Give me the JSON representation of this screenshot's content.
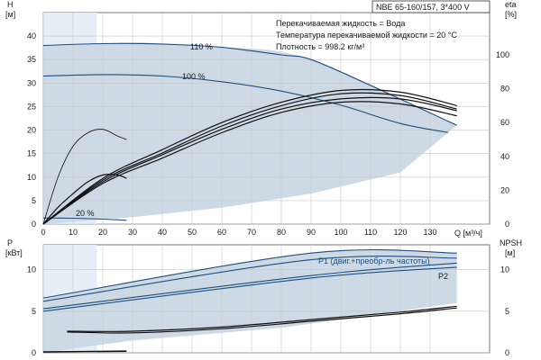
{
  "header_box": "NBE 65-160/157, 3*400 V",
  "info_lines": [
    "Перекачиваемая жидкость = Вода",
    "Температура перекачиваемой жидкости = 20 °C",
    "Плотность = 998.2 кг/м³"
  ],
  "colors": {
    "envelope_fill": "#cdd9e5",
    "light_fill": "#e6eef8",
    "blue_curve": "#1f4f82",
    "black_curve": "#111111",
    "grid": "#c8c8c8"
  },
  "chart_data": [
    {
      "type": "line",
      "title": "",
      "xlabel": "Q [м³/ч]",
      "ylabel_left": "H [м]",
      "ylabel_right": "eta [%]",
      "xlim": [
        0,
        150
      ],
      "ylim": [
        0,
        45
      ],
      "ylim_right": [
        0,
        125
      ],
      "x_ticks": [
        0,
        10,
        20,
        30,
        40,
        50,
        60,
        70,
        80,
        90,
        100,
        110,
        120,
        130
      ],
      "y_ticks": [
        0,
        5,
        10,
        15,
        20,
        25,
        30,
        35,
        40
      ],
      "y_ticks_right": [
        0,
        20,
        40,
        60,
        80,
        100
      ],
      "grid": true,
      "operating_envelope": {
        "upper": [
          [
            0,
            38
          ],
          [
            30,
            38.6
          ],
          [
            60,
            37.7
          ],
          [
            90,
            35
          ],
          [
            139,
            21
          ]
        ],
        "lower": [
          [
            0,
            0
          ],
          [
            30,
            1.5
          ],
          [
            60,
            3.5
          ],
          [
            90,
            6.5
          ],
          [
            120,
            11
          ],
          [
            139,
            21
          ]
        ]
      },
      "series": [
        {
          "name": "110 %",
          "axis": "left",
          "color": "blue",
          "x": [
            0,
            20,
            40,
            60,
            80,
            90,
            110,
            139
          ],
          "y": [
            38,
            38.4,
            38.3,
            37.6,
            36,
            35,
            29.5,
            21
          ]
        },
        {
          "name": "100 %",
          "axis": "left",
          "color": "blue",
          "x": [
            0,
            20,
            40,
            60,
            80,
            100,
            120,
            136
          ],
          "y": [
            31.5,
            31.8,
            31.5,
            30.3,
            28.3,
            25.3,
            21.4,
            19.5
          ]
        },
        {
          "name": "20 %",
          "axis": "left",
          "color": "blue",
          "x": [
            0,
            10,
            20,
            28
          ],
          "y": [
            1.3,
            1.25,
            1.05,
            0.8
          ]
        },
        {
          "name": "",
          "axis": "right",
          "x": [
            0,
            5,
            10,
            15,
            20,
            25,
            28
          ],
          "y": [
            0,
            28,
            46,
            54,
            56,
            52,
            50
          ]
        },
        {
          "name": "",
          "axis": "right",
          "x": [
            0,
            5,
            10,
            15,
            20,
            25,
            28
          ],
          "y": [
            0,
            10,
            18,
            25,
            29,
            29,
            27
          ]
        },
        {
          "name": "",
          "axis": "right",
          "x": [
            0,
            20,
            40,
            60,
            80,
            100,
            120,
            139
          ],
          "y": [
            0,
            27,
            44,
            60,
            72,
            79,
            78,
            70
          ]
        },
        {
          "name": "",
          "axis": "right",
          "x": [
            0,
            20,
            40,
            60,
            80,
            100,
            120,
            139
          ],
          "y": [
            0,
            26,
            42,
            58,
            70,
            77,
            76,
            68
          ]
        },
        {
          "name": "",
          "axis": "right",
          "x": [
            0,
            20,
            40,
            60,
            80,
            100,
            120,
            139
          ],
          "y": [
            0,
            25,
            41,
            56,
            68,
            74,
            74,
            67
          ]
        },
        {
          "name": "",
          "axis": "right",
          "x": [
            0,
            20,
            40,
            60,
            80,
            100,
            120,
            139
          ],
          "y": [
            0,
            24,
            39,
            54,
            66,
            72,
            71,
            64
          ]
        }
      ]
    },
    {
      "type": "line",
      "title": "",
      "xlabel": "",
      "ylabel_left": "P [кВт]",
      "ylabel_right": "NPSH [м]",
      "xlim": [
        0,
        150
      ],
      "ylim": [
        0,
        13
      ],
      "ylim_right": [
        0,
        13
      ],
      "y_ticks": [
        0,
        5,
        10
      ],
      "y_ticks_right": [
        0,
        5,
        10
      ],
      "grid": true,
      "operating_envelope": {
        "upper": [
          [
            0,
            6.6
          ],
          [
            90,
            12
          ],
          [
            139,
            12
          ]
        ],
        "lower": [
          [
            0,
            0
          ],
          [
            30,
            1.5
          ],
          [
            80,
            3
          ],
          [
            139,
            6
          ]
        ]
      },
      "series": [
        {
          "name": "P1 (двиг.+преобр-ль частоты)",
          "axis": "left",
          "color": "blue",
          "x": [
            0,
            90,
            139
          ],
          "y": [
            6.6,
            12.0,
            12.0
          ]
        },
        {
          "name": "",
          "axis": "left",
          "color": "blue",
          "x": [
            0,
            90,
            139
          ],
          "y": [
            6.2,
            11.2,
            11.4
          ]
        },
        {
          "name": "P2",
          "axis": "left",
          "color": "blue",
          "x": [
            0,
            90,
            139
          ],
          "y": [
            5.3,
            9.3,
            10.8
          ]
        },
        {
          "name": "",
          "axis": "left",
          "color": "blue",
          "x": [
            0,
            90,
            139
          ],
          "y": [
            5.0,
            9.0,
            10.3
          ]
        },
        {
          "name": "",
          "axis": "right",
          "color": "black",
          "x": [
            8,
            30,
            60,
            90,
            120,
            139
          ],
          "y": [
            2.6,
            2.6,
            3.1,
            4.0,
            4.9,
            5.6
          ]
        },
        {
          "name": "",
          "axis": "right",
          "color": "black",
          "x": [
            8,
            30,
            60,
            90,
            120,
            139
          ],
          "y": [
            2.5,
            2.4,
            2.9,
            3.8,
            4.7,
            5.4
          ]
        },
        {
          "name": "",
          "axis": "left",
          "color": "black",
          "x": [
            0,
            28
          ],
          "y": [
            0.1,
            0.2
          ]
        }
      ]
    }
  ]
}
